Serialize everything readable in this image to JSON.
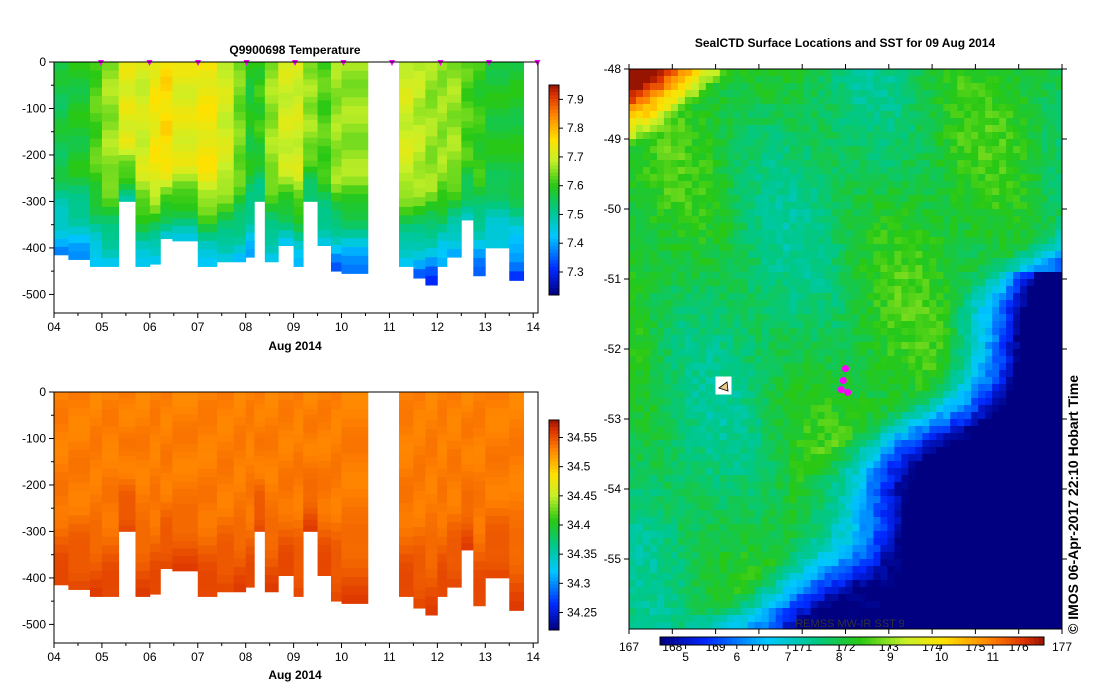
{
  "chart_data": [
    {
      "type": "heatmap",
      "title": "Q9900698  Temperature",
      "xlabel": "Aug 2014",
      "x_ticks": [
        "04",
        "05",
        "06",
        "07",
        "08",
        "09",
        "10",
        "11",
        "12",
        "13",
        "14"
      ],
      "y_ticks": [
        0,
        -100,
        -200,
        -300,
        -400,
        -500
      ],
      "ylim": [
        -540,
        0
      ],
      "colorbar_ticks": [
        7.9,
        7.8,
        7.7,
        7.6,
        7.5,
        7.4,
        7.3
      ],
      "colorbar_range": [
        7.22,
        7.95
      ],
      "profile_markers": "magenta",
      "profiles": [
        {
          "t": 0.0,
          "w": 0.3,
          "depth": -415,
          "surface": 7.56,
          "deep": 7.38
        },
        {
          "t": 0.3,
          "w": 0.45,
          "depth": -425,
          "surface": 7.58,
          "deep": 7.38
        },
        {
          "t": 0.75,
          "w": 0.25,
          "depth": -440,
          "surface": 7.62,
          "deep": 7.4
        },
        {
          "t": 1.0,
          "w": 0.35,
          "depth": -440,
          "surface": 7.66,
          "deep": 7.42
        },
        {
          "t": 1.35,
          "w": 0.35,
          "depth": -300,
          "surface": 7.72,
          "deep": 7.5
        },
        {
          "t": 1.7,
          "w": 0.3,
          "depth": -440,
          "surface": 7.7,
          "deep": 7.42
        },
        {
          "t": 2.0,
          "w": 0.22,
          "depth": -435,
          "surface": 7.74,
          "deep": 7.4
        },
        {
          "t": 2.22,
          "w": 0.25,
          "depth": -380,
          "surface": 7.76,
          "deep": 7.45
        },
        {
          "t": 2.47,
          "w": 0.53,
          "depth": -385,
          "surface": 7.72,
          "deep": 7.45
        },
        {
          "t": 3.0,
          "w": 0.4,
          "depth": -440,
          "surface": 7.74,
          "deep": 7.4
        },
        {
          "t": 3.4,
          "w": 0.35,
          "depth": -430,
          "surface": 7.7,
          "deep": 7.42
        },
        {
          "t": 3.75,
          "w": 0.25,
          "depth": -430,
          "surface": 7.64,
          "deep": 7.42
        },
        {
          "t": 4.0,
          "w": 0.18,
          "depth": -420,
          "surface": 7.58,
          "deep": 7.4
        },
        {
          "t": 4.18,
          "w": 0.22,
          "depth": -300,
          "surface": 7.6,
          "deep": 7.5
        },
        {
          "t": 4.4,
          "w": 0.28,
          "depth": -430,
          "surface": 7.66,
          "deep": 7.42
        },
        {
          "t": 4.68,
          "w": 0.32,
          "depth": -395,
          "surface": 7.7,
          "deep": 7.44
        },
        {
          "t": 5.0,
          "w": 0.2,
          "depth": -440,
          "surface": 7.7,
          "deep": 7.4
        },
        {
          "t": 5.2,
          "w": 0.3,
          "depth": -300,
          "surface": 7.66,
          "deep": 7.5
        },
        {
          "t": 5.5,
          "w": 0.28,
          "depth": -395,
          "surface": 7.62,
          "deep": 7.44
        },
        {
          "t": 5.78,
          "w": 0.22,
          "depth": -450,
          "surface": 7.66,
          "deep": 7.34
        },
        {
          "t": 6.0,
          "w": 0.55,
          "depth": -455,
          "surface": 7.66,
          "deep": 7.34
        },
        {
          "t": 7.2,
          "w": 0.3,
          "depth": -440,
          "surface": 7.7,
          "deep": 7.4
        },
        {
          "t": 7.5,
          "w": 0.25,
          "depth": -465,
          "surface": 7.68,
          "deep": 7.34
        },
        {
          "t": 7.75,
          "w": 0.25,
          "depth": -480,
          "surface": 7.66,
          "deep": 7.3
        },
        {
          "t": 8.0,
          "w": 0.2,
          "depth": -440,
          "surface": 7.66,
          "deep": 7.38
        },
        {
          "t": 8.2,
          "w": 0.3,
          "depth": -420,
          "surface": 7.66,
          "deep": 7.38
        },
        {
          "t": 8.5,
          "w": 0.25,
          "depth": -340,
          "surface": 7.62,
          "deep": 7.48
        },
        {
          "t": 8.75,
          "w": 0.25,
          "depth": -460,
          "surface": 7.6,
          "deep": 7.34
        },
        {
          "t": 9.0,
          "w": 0.5,
          "depth": -400,
          "surface": 7.58,
          "deep": 7.42
        },
        {
          "t": 9.5,
          "w": 0.3,
          "depth": -470,
          "surface": 7.58,
          "deep": 7.3
        }
      ]
    },
    {
      "type": "heatmap",
      "title": "",
      "xlabel": "Aug 2014",
      "x_ticks": [
        "04",
        "05",
        "06",
        "07",
        "08",
        "09",
        "10",
        "11",
        "12",
        "13",
        "14"
      ],
      "y_ticks": [
        0,
        -100,
        -200,
        -300,
        -400,
        -500
      ],
      "ylim": [
        -540,
        0
      ],
      "colorbar_ticks": [
        34.55,
        34.5,
        34.45,
        34.4,
        34.35,
        34.3,
        34.25
      ],
      "colorbar_range": [
        34.22,
        34.58
      ],
      "same_profiles_as": 0,
      "surface_salinity": 34.53,
      "deep_salinity": 34.57
    },
    {
      "type": "heatmap",
      "title": "SealCTD Surface Locations and SST for 09 Aug 2014",
      "ylabel": "",
      "x_ticks": [
        "167",
        "168",
        "169",
        "170",
        "171",
        "172",
        "173",
        "174",
        "175",
        "176",
        "177"
      ],
      "y_ticks": [
        "-48",
        "-49",
        "-50",
        "-51",
        "-52",
        "-53",
        "-54",
        "-55"
      ],
      "xlim": [
        167,
        177
      ],
      "ylim": [
        -56,
        -48
      ],
      "colorbar_ticks": [
        "5",
        "6",
        "7",
        "8",
        "9",
        "10",
        "11"
      ],
      "colorbar_range": [
        4.5,
        12
      ],
      "overlay_label": "REMSS MW-IR SST 9",
      "surface_locations": [
        {
          "lon": 172.0,
          "lat": -52.28
        },
        {
          "lon": 171.95,
          "lat": -52.45
        },
        {
          "lon": 172.05,
          "lat": -52.62
        },
        {
          "lon": 171.9,
          "lat": -52.58
        }
      ]
    }
  ],
  "credit": "© IMOS 06-Apr-2017 22:10 Hobart Time",
  "colors": {
    "marker": "#ff00ff",
    "axis": "#000000",
    "background": "#ffffff"
  }
}
